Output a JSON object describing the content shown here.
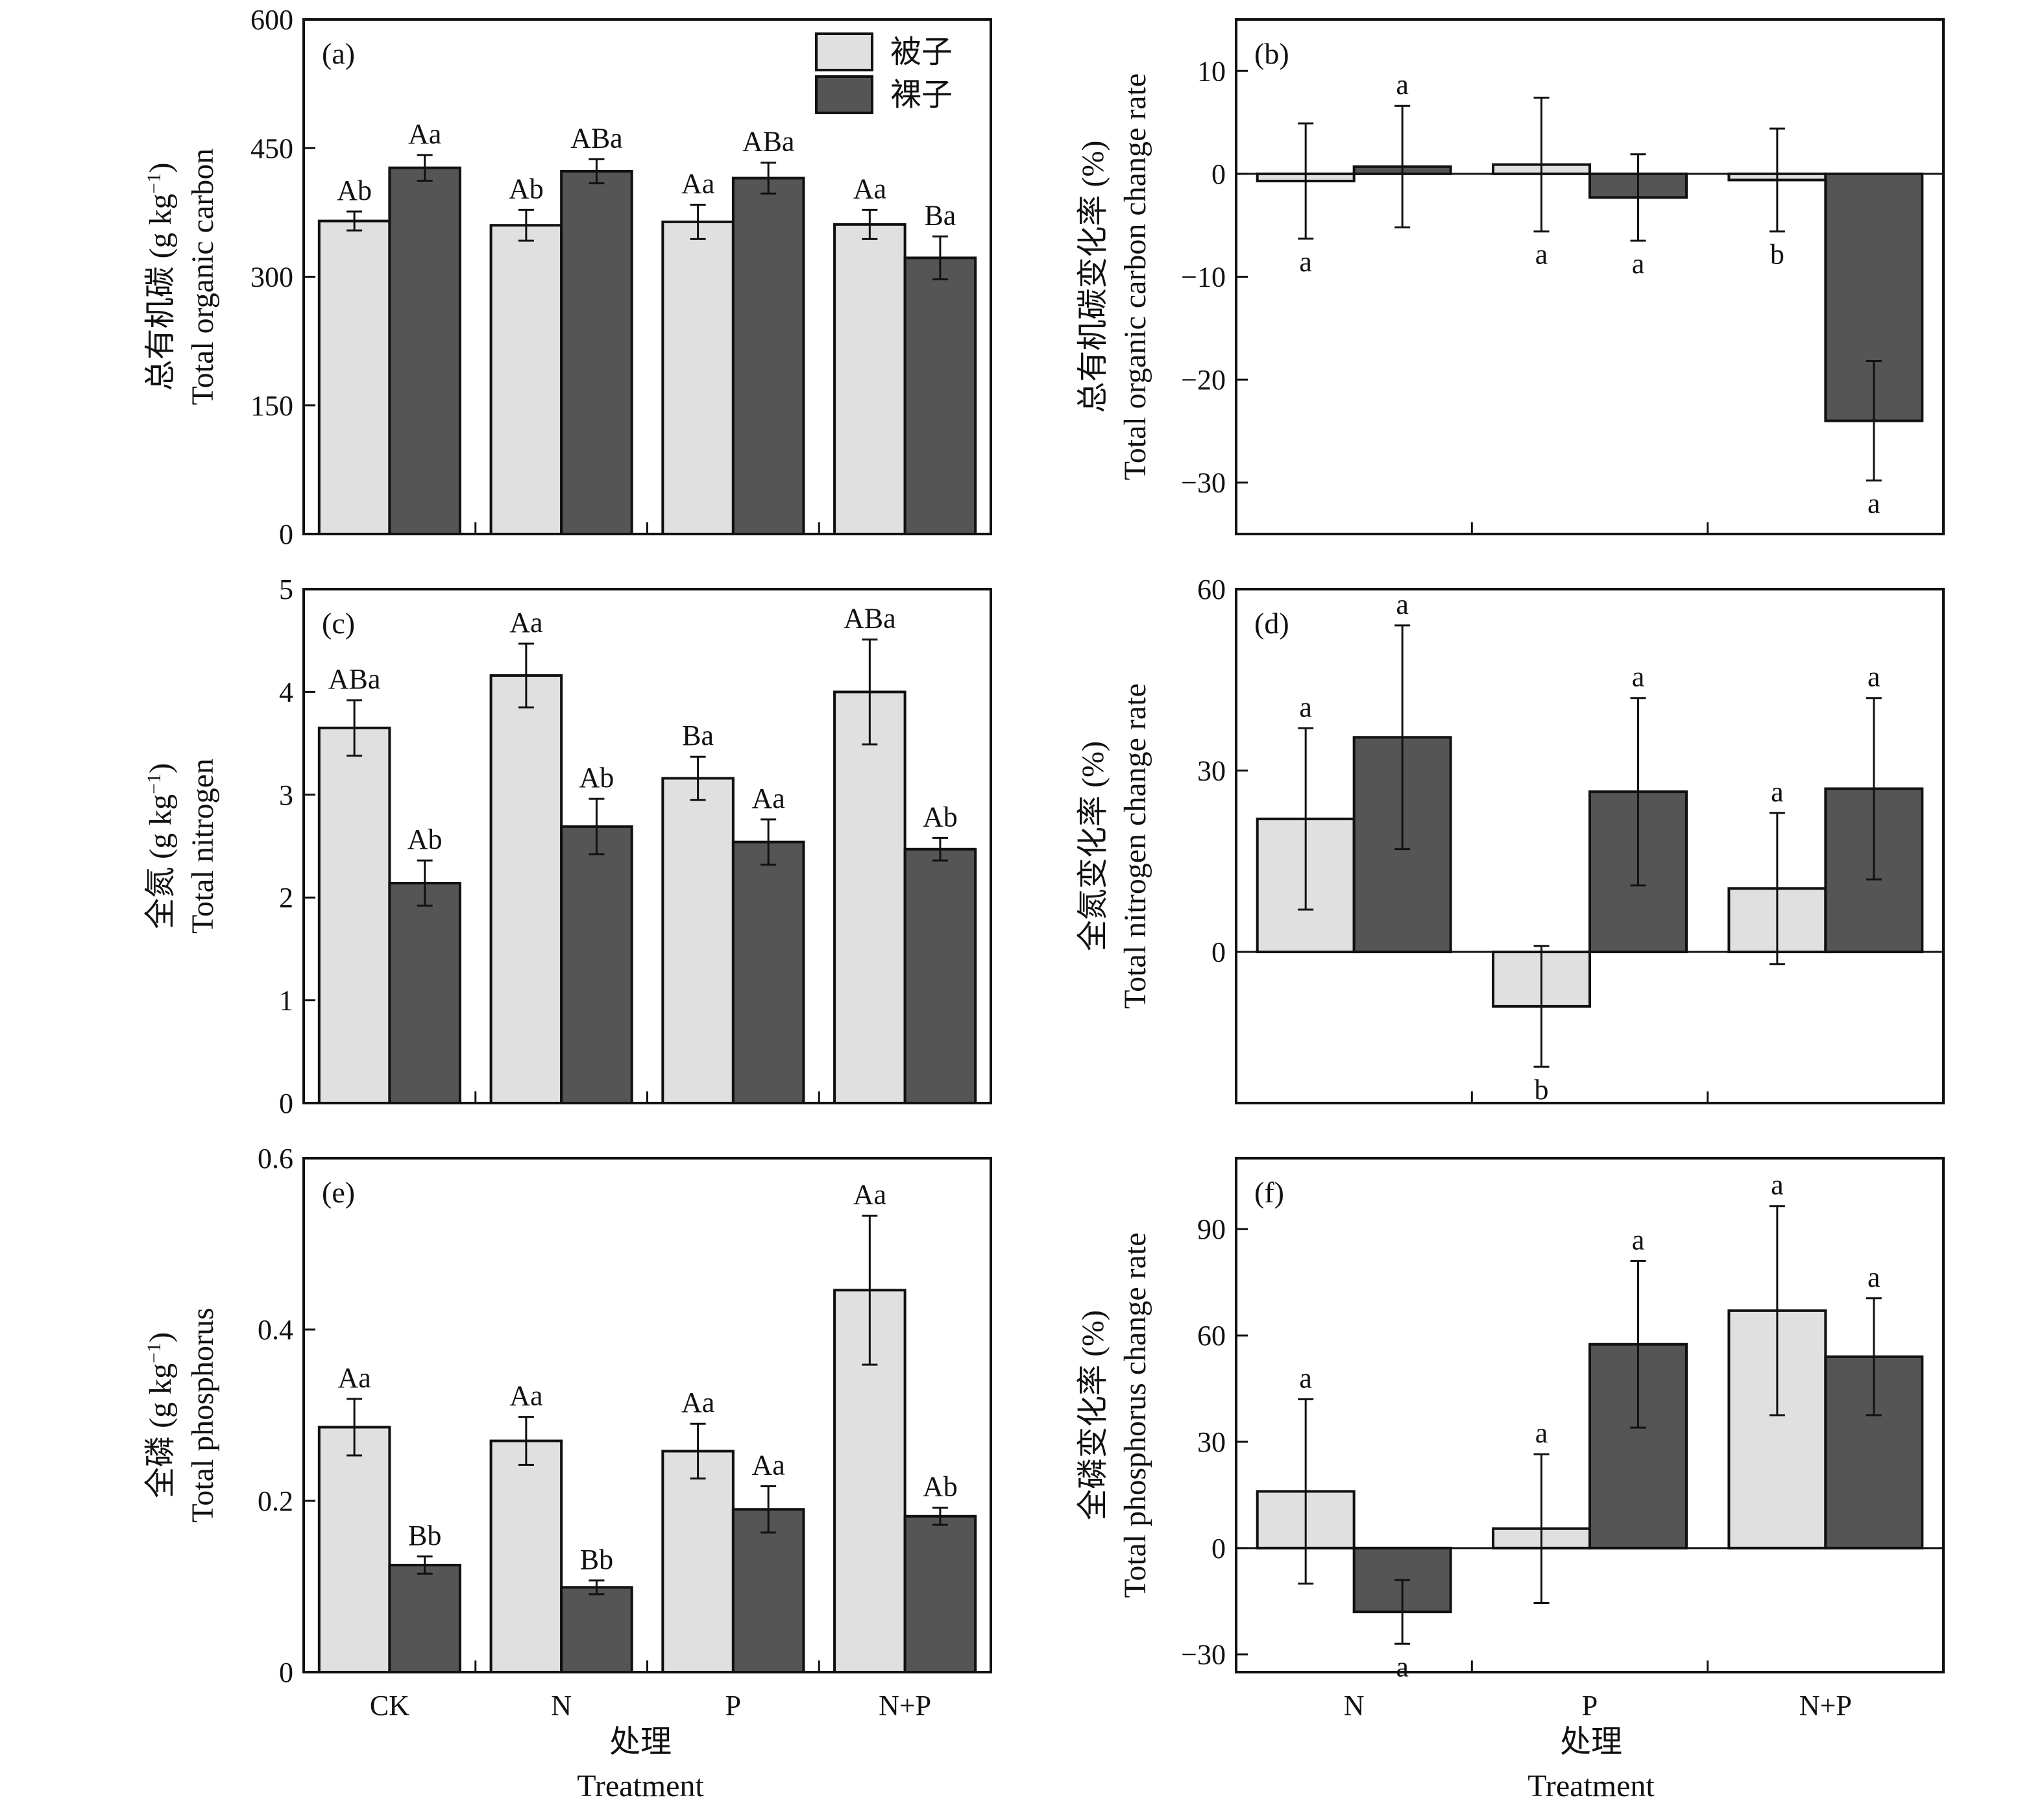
{
  "colors": {
    "angiosperm": "#e0e0e0",
    "gymnosperm": "#555555",
    "frame": "#111111"
  },
  "legend": {
    "items": [
      "被子",
      "裸子"
    ]
  },
  "x_axis": {
    "left_categories": [
      "CK",
      "N",
      "P",
      "N+P"
    ],
    "right_categories": [
      "N",
      "P",
      "N+P"
    ],
    "left_title_zh": "处理",
    "left_title_en": "Treatment",
    "right_title_zh": "处理",
    "right_title_en": "Treatment"
  },
  "chart_data": [
    {
      "panel": "(a)",
      "type": "bar",
      "ylabel_zh": "总有机碳",
      "ylabel_zh_unit": " (g kg",
      "ylabel_zh_sup": "−1",
      "ylabel_zh_close": ")",
      "ylabel_en": "Total organic carbon",
      "ylim": [
        0,
        600
      ],
      "yticks": [
        0,
        150,
        300,
        450,
        600
      ],
      "ytick_labels": [
        "0",
        "150",
        "300",
        "450",
        "600"
      ],
      "categories": [
        "CK",
        "N",
        "P",
        "N+P"
      ],
      "series": [
        {
          "name": "被子",
          "values": [
            365,
            360,
            364,
            361
          ],
          "err": [
            11,
            18,
            20,
            17
          ],
          "labels": [
            "Ab",
            "Ab",
            "Aa",
            "Aa"
          ]
        },
        {
          "name": "裸子",
          "values": [
            427,
            423,
            415,
            322
          ],
          "err": [
            15,
            14,
            18,
            25
          ],
          "labels": [
            "Aa",
            "ABa",
            "ABa",
            "Ba"
          ]
        }
      ]
    },
    {
      "panel": "(b)",
      "type": "bar",
      "ylabel_zh": "总有机碳变化率 (%)",
      "ylabel_en": "Total organic carbon change rate",
      "ylim": [
        -35,
        15
      ],
      "yticks": [
        -30,
        -20,
        -10,
        0,
        10
      ],
      "ytick_labels": [
        "−30",
        "−20",
        "−10",
        "0",
        "10"
      ],
      "categories": [
        "N",
        "P",
        "N+P"
      ],
      "series": [
        {
          "name": "被子",
          "values": [
            -0.7,
            0.9,
            -0.6
          ],
          "err": [
            5.6,
            6.5,
            5.0
          ],
          "labels": [
            "a",
            "a",
            "b"
          ],
          "label_pos": [
            "below",
            "below",
            "below"
          ]
        },
        {
          "name": "裸子",
          "values": [
            0.7,
            -2.3,
            -24.0
          ],
          "err": [
            5.9,
            4.2,
            5.8
          ],
          "labels": [
            "a",
            "a",
            "a"
          ],
          "label_pos": [
            "above",
            "below",
            "below"
          ]
        }
      ]
    },
    {
      "panel": "(c)",
      "type": "bar",
      "ylabel_zh": "全氮",
      "ylabel_zh_unit": " (g kg",
      "ylabel_zh_sup": "−1",
      "ylabel_zh_close": ")",
      "ylabel_en": "Total nitrogen",
      "ylim": [
        0,
        5
      ],
      "yticks": [
        0,
        1,
        2,
        3,
        4,
        5
      ],
      "ytick_labels": [
        "0",
        "1",
        "2",
        "3",
        "4",
        "5"
      ],
      "categories": [
        "CK",
        "N",
        "P",
        "N+P"
      ],
      "series": [
        {
          "name": "被子",
          "values": [
            3.65,
            4.16,
            3.16,
            4.0
          ],
          "err": [
            0.27,
            0.31,
            0.21,
            0.51
          ],
          "labels": [
            "ABa",
            "Aa",
            "Ba",
            "ABa"
          ]
        },
        {
          "name": "裸子",
          "values": [
            2.14,
            2.69,
            2.54,
            2.47
          ],
          "err": [
            0.22,
            0.27,
            0.22,
            0.11
          ],
          "labels": [
            "Ab",
            "Ab",
            "Aa",
            "Ab"
          ]
        }
      ]
    },
    {
      "panel": "(d)",
      "type": "bar",
      "ylabel_zh": "全氮变化率 (%)",
      "ylabel_en": "Total nitrogen change rate",
      "ylim": [
        -25,
        60
      ],
      "yticks": [
        0,
        30,
        60
      ],
      "ytick_labels": [
        "0",
        "30",
        "60"
      ],
      "categories": [
        "N",
        "P",
        "N+P"
      ],
      "series": [
        {
          "name": "被子",
          "values": [
            22,
            -9,
            10.5
          ],
          "err": [
            15,
            10,
            12.5
          ],
          "labels": [
            "a",
            "b",
            "a"
          ],
          "label_pos": [
            "above",
            "below",
            "above"
          ]
        },
        {
          "name": "裸子",
          "values": [
            35.5,
            26.5,
            27
          ],
          "err": [
            18.5,
            15.5,
            15
          ],
          "labels": [
            "a",
            "a",
            "a"
          ],
          "label_pos": [
            "above",
            "above",
            "above"
          ]
        }
      ]
    },
    {
      "panel": "(e)",
      "type": "bar",
      "ylabel_zh": "全磷",
      "ylabel_zh_unit": " (g kg",
      "ylabel_zh_sup": "−1",
      "ylabel_zh_close": ")",
      "ylabel_en": "Total phosphorus",
      "ylim": [
        0,
        0.6
      ],
      "yticks": [
        0,
        0.2,
        0.4,
        0.6
      ],
      "ytick_labels": [
        "0",
        "0.2",
        "0.4",
        "0.6"
      ],
      "categories": [
        "CK",
        "N",
        "P",
        "N+P"
      ],
      "series": [
        {
          "name": "被子",
          "values": [
            0.286,
            0.27,
            0.258,
            0.446
          ],
          "err": [
            0.033,
            0.028,
            0.032,
            0.087
          ],
          "labels": [
            "Aa",
            "Aa",
            "Aa",
            "Aa"
          ]
        },
        {
          "name": "裸子",
          "values": [
            0.125,
            0.099,
            0.19,
            0.182
          ],
          "err": [
            0.01,
            0.008,
            0.027,
            0.01
          ],
          "labels": [
            "Bb",
            "Bb",
            "Aa",
            "Ab"
          ]
        }
      ]
    },
    {
      "panel": "(f)",
      "type": "bar",
      "ylabel_zh": "全磷变化率 (%)",
      "ylabel_en": "Total phosphorus change rate",
      "ylim": [
        -35,
        110
      ],
      "yticks": [
        -30,
        0,
        30,
        60,
        90
      ],
      "ytick_labels": [
        "−30",
        "0",
        "30",
        "60",
        "90"
      ],
      "categories": [
        "N",
        "P",
        "N+P"
      ],
      "series": [
        {
          "name": "被子",
          "values": [
            16,
            5.5,
            67
          ],
          "err": [
            26,
            21,
            29.5
          ],
          "labels": [
            "a",
            "a",
            "a"
          ],
          "label_pos": [
            "above",
            "above",
            "above"
          ]
        },
        {
          "name": "裸子",
          "values": [
            -18,
            57.5,
            54
          ],
          "err": [
            9,
            23.5,
            16.5
          ],
          "labels": [
            "a",
            "a",
            "a"
          ],
          "label_pos": [
            "below",
            "above",
            "above"
          ]
        }
      ]
    }
  ]
}
